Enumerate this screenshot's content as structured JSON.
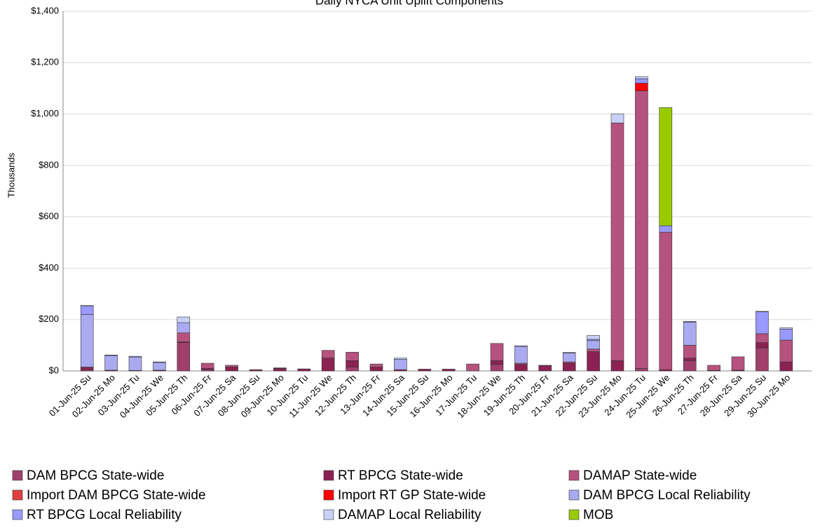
{
  "chart_data": {
    "type": "stacked_bar",
    "title": "Daily NYCA Unit Uplift Components",
    "y_label": "Thousands",
    "categories": [
      "01-Jun-25 Su",
      "02-Jun-25 Mo",
      "03-Jun-25 Tu",
      "04-Jun-25 We",
      "05-Jun-25 Th",
      "06-Jun-25 Fr",
      "07-Jun-25 Sa",
      "08-Jun-25 Su",
      "09-Jun-25 Mo",
      "10-Jun-25 Tu",
      "11-Jun-25 We",
      "12-Jun-25 Th",
      "13-Jun-25 Fr",
      "14-Jun-25 Sa",
      "15-Jun-25 Su",
      "16-Jun-25 Mo",
      "17-Jun-25 Tu",
      "18-Jun-25 We",
      "19-Jun-25 Th",
      "20-Jun-25 Fr",
      "21-Jun-25 Sa",
      "22-Jun-25 Su",
      "23-Jun-25 Mo",
      "24-Jun-25 Tu",
      "25-Jun-25 We",
      "26-Jun-25 Th",
      "27-Jun-25 Fr",
      "28-Jun-25 Sa",
      "29-Jun-25 Su",
      "30-Jun-25 Mo"
    ],
    "series": [
      {
        "name": "DAM BPCG State-wide",
        "color": "#a0406a",
        "values": [
          5,
          0,
          0,
          0,
          110,
          5,
          0,
          0,
          0,
          0,
          0,
          15,
          0,
          0,
          0,
          0,
          0,
          25,
          0,
          0,
          0,
          0,
          0,
          10,
          0,
          40,
          0,
          0,
          90,
          0
        ]
      },
      {
        "name": "RT BPCG State-wide",
        "color": "#8b2252",
        "values": [
          10,
          3,
          2,
          3,
          3,
          5,
          15,
          5,
          10,
          8,
          50,
          25,
          15,
          5,
          7,
          7,
          0,
          15,
          25,
          20,
          30,
          75,
          40,
          0,
          5,
          10,
          2,
          3,
          20,
          35
        ]
      },
      {
        "name": "DAMAP State-wide",
        "color": "#b5527e",
        "values": [
          0,
          0,
          0,
          0,
          35,
          20,
          7,
          0,
          2,
          0,
          30,
          33,
          12,
          0,
          0,
          0,
          27,
          67,
          5,
          2,
          5,
          10,
          925,
          1080,
          535,
          50,
          20,
          52,
          35,
          85
        ]
      },
      {
        "name": "Import DAM BPCG State-wide",
        "color": "#e04040",
        "values": [
          0,
          0,
          0,
          0,
          0,
          0,
          0,
          0,
          0,
          0,
          0,
          0,
          0,
          0,
          0,
          0,
          0,
          0,
          0,
          0,
          0,
          0,
          0,
          0,
          0,
          0,
          0,
          0,
          0,
          0
        ]
      },
      {
        "name": "Import RT GP State-wide",
        "color": "#ff0000",
        "values": [
          0,
          0,
          0,
          0,
          0,
          0,
          0,
          0,
          0,
          0,
          0,
          0,
          0,
          0,
          0,
          0,
          0,
          0,
          0,
          0,
          0,
          0,
          0,
          30,
          0,
          0,
          0,
          0,
          0,
          0
        ]
      },
      {
        "name": "DAM BPCG Local Reliability",
        "color": "#aaaaf0",
        "values": [
          205,
          57,
          52,
          30,
          40,
          0,
          0,
          0,
          0,
          0,
          0,
          0,
          0,
          40,
          0,
          0,
          0,
          0,
          65,
          0,
          35,
          33,
          0,
          0,
          0,
          90,
          0,
          0,
          0,
          0
        ]
      },
      {
        "name": "RT BPCG Local Reliability",
        "color": "#9999ff",
        "values": [
          32,
          2,
          3,
          2,
          0,
          0,
          0,
          0,
          0,
          0,
          0,
          0,
          0,
          0,
          0,
          0,
          0,
          0,
          3,
          0,
          2,
          5,
          0,
          17,
          25,
          3,
          0,
          0,
          85,
          43
        ]
      },
      {
        "name": "DAMAP Local Reliability",
        "color": "#c8d0f8",
        "values": [
          3,
          0,
          0,
          0,
          22,
          0,
          0,
          0,
          0,
          0,
          0,
          0,
          0,
          5,
          0,
          0,
          0,
          0,
          0,
          0,
          0,
          15,
          35,
          8,
          0,
          0,
          0,
          0,
          2,
          5
        ]
      },
      {
        "name": "MOB",
        "color": "#99cc00",
        "values": [
          0,
          0,
          0,
          0,
          0,
          0,
          0,
          0,
          0,
          0,
          0,
          0,
          0,
          0,
          0,
          0,
          0,
          0,
          0,
          0,
          0,
          0,
          0,
          0,
          460,
          0,
          0,
          0,
          0,
          0
        ]
      }
    ],
    "ylim": [
      0,
      1400
    ],
    "yticks": [
      {
        "value": 0,
        "label": "$0"
      },
      {
        "value": 200,
        "label": "$200"
      },
      {
        "value": 400,
        "label": "$400"
      },
      {
        "value": 600,
        "label": "$600"
      },
      {
        "value": 800,
        "label": "$800"
      },
      {
        "value": 1000,
        "label": "$1,000"
      },
      {
        "value": 1200,
        "label": "$1,200"
      },
      {
        "value": 1400,
        "label": "$1,400"
      }
    ],
    "grid": true
  }
}
